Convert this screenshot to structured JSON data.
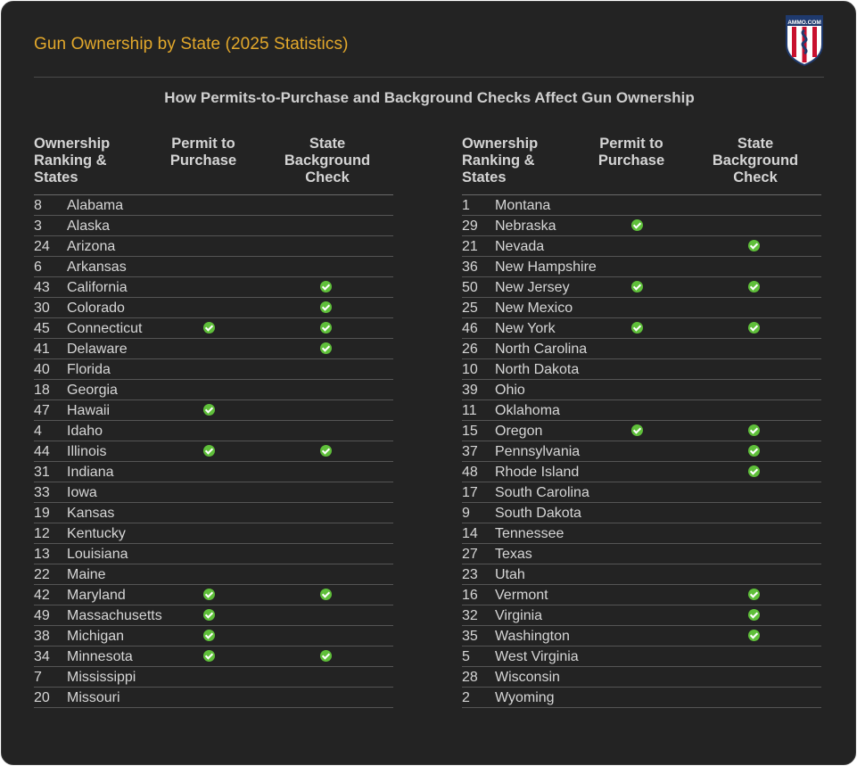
{
  "title": "Gun Ownership by State (2025 Statistics)",
  "logo_text": "AMMO.COM",
  "colors": {
    "accent": "#e3a82b",
    "check": "#5fbf3a",
    "background": "#232323"
  },
  "chart_data": {
    "type": "table",
    "title": "How Permits-to-Purchase and Background Checks Affect Gun Ownership",
    "columns": [
      "Ownership Ranking & States",
      "Permit to Purchase",
      "State Background Check"
    ],
    "header_lines": {
      "rank": [
        "Ownership",
        "Ranking &",
        "States"
      ],
      "permit": [
        "Permit to",
        "Purchase"
      ],
      "check": [
        "State",
        "Background",
        "Check"
      ]
    },
    "left": [
      {
        "rank": "8",
        "state": "Alabama",
        "permit": false,
        "check": false
      },
      {
        "rank": "3",
        "state": "Alaska",
        "permit": false,
        "check": false
      },
      {
        "rank": "24",
        "state": "Arizona",
        "permit": false,
        "check": false
      },
      {
        "rank": "6",
        "state": "Arkansas",
        "permit": false,
        "check": false
      },
      {
        "rank": "43",
        "state": "California",
        "permit": false,
        "check": true
      },
      {
        "rank": "30",
        "state": "Colorado",
        "permit": false,
        "check": true
      },
      {
        "rank": "45",
        "state": "Connecticut",
        "permit": true,
        "check": true
      },
      {
        "rank": "41",
        "state": "Delaware",
        "permit": false,
        "check": true
      },
      {
        "rank": "40",
        "state": "Florida",
        "permit": false,
        "check": false
      },
      {
        "rank": "18",
        "state": "Georgia",
        "permit": false,
        "check": false
      },
      {
        "rank": "47",
        "state": "Hawaii",
        "permit": true,
        "check": false
      },
      {
        "rank": "4",
        "state": "Idaho",
        "permit": false,
        "check": false
      },
      {
        "rank": "44",
        "state": "Illinois",
        "permit": true,
        "check": true
      },
      {
        "rank": "31",
        "state": "Indiana",
        "permit": false,
        "check": false
      },
      {
        "rank": "33",
        "state": "Iowa",
        "permit": false,
        "check": false
      },
      {
        "rank": "19",
        "state": "Kansas",
        "permit": false,
        "check": false
      },
      {
        "rank": "12",
        "state": "Kentucky",
        "permit": false,
        "check": false
      },
      {
        "rank": "13",
        "state": "Louisiana",
        "permit": false,
        "check": false
      },
      {
        "rank": "22",
        "state": "Maine",
        "permit": false,
        "check": false
      },
      {
        "rank": "42",
        "state": "Maryland",
        "permit": true,
        "check": true
      },
      {
        "rank": "49",
        "state": "Massachusetts",
        "permit": true,
        "check": false
      },
      {
        "rank": "38",
        "state": "Michigan",
        "permit": true,
        "check": false
      },
      {
        "rank": "34",
        "state": "Minnesota",
        "permit": true,
        "check": true
      },
      {
        "rank": "7",
        "state": "Mississippi",
        "permit": false,
        "check": false
      },
      {
        "rank": "20",
        "state": "Missouri",
        "permit": false,
        "check": false
      }
    ],
    "right": [
      {
        "rank": "1",
        "state": "Montana",
        "permit": false,
        "check": false
      },
      {
        "rank": "29",
        "state": "Nebraska",
        "permit": true,
        "check": false
      },
      {
        "rank": "21",
        "state": "Nevada",
        "permit": false,
        "check": true
      },
      {
        "rank": "36",
        "state": "New Hampshire",
        "permit": false,
        "check": false
      },
      {
        "rank": "50",
        "state": "New Jersey",
        "permit": true,
        "check": true
      },
      {
        "rank": "25",
        "state": "New Mexico",
        "permit": false,
        "check": false
      },
      {
        "rank": "46",
        "state": "New York",
        "permit": true,
        "check": true
      },
      {
        "rank": "26",
        "state": "North Carolina",
        "permit": false,
        "check": false
      },
      {
        "rank": "10",
        "state": "North Dakota",
        "permit": false,
        "check": false
      },
      {
        "rank": "39",
        "state": "Ohio",
        "permit": false,
        "check": false
      },
      {
        "rank": "11",
        "state": "Oklahoma",
        "permit": false,
        "check": false
      },
      {
        "rank": "15",
        "state": "Oregon",
        "permit": true,
        "check": true
      },
      {
        "rank": "37",
        "state": "Pennsylvania",
        "permit": false,
        "check": true
      },
      {
        "rank": "48",
        "state": "Rhode Island",
        "permit": false,
        "check": true
      },
      {
        "rank": "17",
        "state": "South Carolina",
        "permit": false,
        "check": false
      },
      {
        "rank": "9",
        "state": "South Dakota",
        "permit": false,
        "check": false
      },
      {
        "rank": "14",
        "state": "Tennessee",
        "permit": false,
        "check": false
      },
      {
        "rank": "27",
        "state": "Texas",
        "permit": false,
        "check": false
      },
      {
        "rank": "23",
        "state": "Utah",
        "permit": false,
        "check": false
      },
      {
        "rank": "16",
        "state": "Vermont",
        "permit": false,
        "check": true
      },
      {
        "rank": "32",
        "state": "Virginia",
        "permit": false,
        "check": true
      },
      {
        "rank": "35",
        "state": "Washington",
        "permit": false,
        "check": true
      },
      {
        "rank": "5",
        "state": "West Virginia",
        "permit": false,
        "check": false
      },
      {
        "rank": "28",
        "state": "Wisconsin",
        "permit": false,
        "check": false
      },
      {
        "rank": "2",
        "state": "Wyoming",
        "permit": false,
        "check": false
      }
    ]
  }
}
